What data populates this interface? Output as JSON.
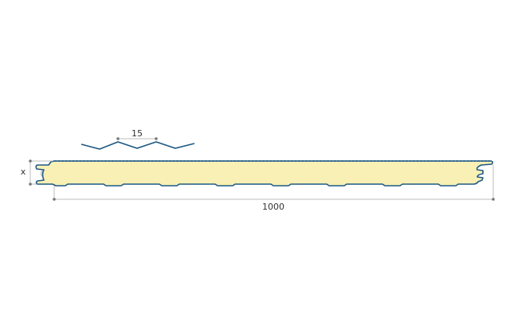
{
  "diagram": {
    "profile_pitch_label": "15",
    "thickness_label": "x",
    "width_label": "1000"
  },
  "colors": {
    "steel_outline": "#1f5a85",
    "foam_core": "#f8f0b4",
    "dimension_line": "#bdbdbd",
    "dimension_dot": "#777777",
    "text": "#333333"
  }
}
